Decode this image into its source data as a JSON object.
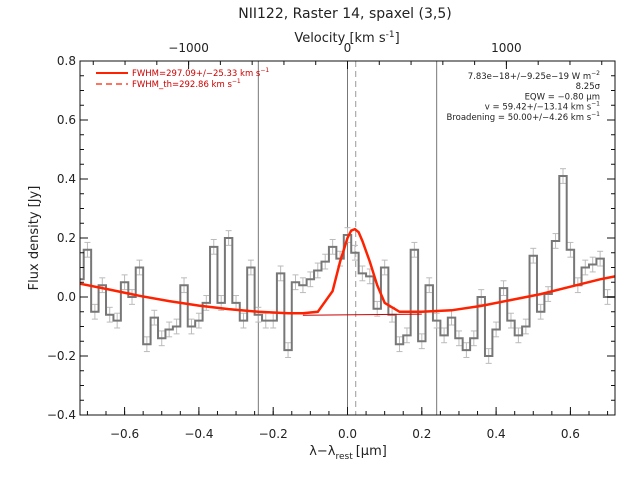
{
  "chart_data": {
    "type": "line",
    "title": "NII122, Raster 14, spaxel (3,5)",
    "xlabel": "λ−λ",
    "xlabel_sub": "rest",
    "xlabel_unit": "[μm]",
    "ylabel": "Flux density [Jy]",
    "top_axis": {
      "label": "Velocity [km s",
      "label_sup": "-1",
      "label_end": "]",
      "ticks": [
        -1000,
        0,
        1000
      ],
      "tick_labels": [
        "−1000",
        "0",
        "1000"
      ]
    },
    "xlim": [
      -0.72,
      0.72
    ],
    "ylim": [
      -0.4,
      0.8
    ],
    "xticks": [
      -0.6,
      -0.4,
      -0.2,
      0.0,
      0.2,
      0.4,
      0.6
    ],
    "xtick_labels": [
      "−0.6",
      "−0.4",
      "−0.2",
      "0.0",
      "0.2",
      "0.4",
      "0.6"
    ],
    "yticks": [
      -0.4,
      -0.2,
      0.0,
      0.2,
      0.4,
      0.6,
      0.8
    ],
    "ytick_labels": [
      "−0.4",
      "−0.2",
      "0.0",
      "0.2",
      "0.4",
      "0.6",
      "0.8"
    ],
    "vlines_solid": [
      -0.24,
      0.0,
      0.24
    ],
    "vline_dashed": 0.022,
    "legend": {
      "placement": "top-left",
      "entries": [
        {
          "label": "FWHM=297.09+/−25.33 km s",
          "sup": "−1",
          "style": "solid"
        },
        {
          "label": "FWHM_th=292.86 km s",
          "sup": "−1",
          "style": "dashed"
        }
      ]
    },
    "annotations": [
      {
        "text": "7.83e−18+/−9.25e−19 W m",
        "sup": "−2"
      },
      {
        "text": "8.25σ",
        "sup": ""
      },
      {
        "text": "EQW = −0.80 μm",
        "sup": ""
      },
      {
        "text": "v = 59.42+/−13.14 km s",
        "sup": "−1"
      },
      {
        "text": "Broadening = 50.00+/−4.26 km s",
        "sup": "−1"
      }
    ],
    "series": [
      {
        "style": "histogram",
        "x": [
          -0.72,
          -0.7,
          -0.68,
          -0.66,
          -0.64,
          -0.62,
          -0.6,
          -0.58,
          -0.56,
          -0.54,
          -0.52,
          -0.5,
          -0.48,
          -0.46,
          -0.44,
          -0.42,
          -0.4,
          -0.38,
          -0.36,
          -0.34,
          -0.32,
          -0.3,
          -0.28,
          -0.26,
          -0.24,
          -0.22,
          -0.2,
          -0.18,
          -0.16,
          -0.14,
          -0.12,
          -0.1,
          -0.08,
          -0.06,
          -0.04,
          -0.02,
          0.0,
          0.02,
          0.04,
          0.06,
          0.08,
          0.1,
          0.12,
          0.14,
          0.16,
          0.18,
          0.2,
          0.22,
          0.24,
          0.26,
          0.28,
          0.3,
          0.32,
          0.34,
          0.36,
          0.38,
          0.4,
          0.42,
          0.44,
          0.46,
          0.48,
          0.5,
          0.52,
          0.54,
          0.56,
          0.58,
          0.6,
          0.62,
          0.64,
          0.66,
          0.68,
          0.7,
          0.72
        ],
        "values": [
          0.06,
          0.16,
          -0.05,
          0.04,
          -0.06,
          -0.08,
          0.05,
          0.0,
          0.1,
          -0.16,
          -0.07,
          -0.14,
          -0.11,
          -0.1,
          0.04,
          -0.1,
          -0.08,
          -0.02,
          0.17,
          -0.02,
          0.2,
          -0.02,
          -0.08,
          0.1,
          -0.06,
          -0.08,
          -0.08,
          0.08,
          -0.18,
          0.05,
          0.04,
          0.06,
          0.09,
          0.12,
          0.17,
          0.13,
          0.21,
          0.15,
          0.08,
          0.07,
          -0.04,
          0.1,
          -0.06,
          -0.16,
          -0.13,
          0.16,
          -0.15,
          0.04,
          -0.08,
          -0.13,
          -0.07,
          -0.14,
          -0.18,
          -0.14,
          0.0,
          -0.2,
          -0.11,
          0.03,
          -0.08,
          -0.13,
          -0.1,
          0.14,
          -0.05,
          0.01,
          0.19,
          0.41,
          0.16,
          0.04,
          0.1,
          0.11,
          0.13,
          0.0,
          0.0
        ],
        "errors": [
          0.025,
          0.025,
          0.025,
          0.025,
          0.025,
          0.025,
          0.025,
          0.025,
          0.025,
          0.025,
          0.025,
          0.025,
          0.025,
          0.025,
          0.025,
          0.025,
          0.025,
          0.025,
          0.025,
          0.025,
          0.025,
          0.025,
          0.025,
          0.025,
          0.025,
          0.025,
          0.025,
          0.025,
          0.025,
          0.025,
          0.025,
          0.025,
          0.025,
          0.025,
          0.025,
          0.025,
          0.025,
          0.025,
          0.025,
          0.025,
          0.025,
          0.025,
          0.025,
          0.025,
          0.025,
          0.025,
          0.025,
          0.025,
          0.025,
          0.025,
          0.025,
          0.025,
          0.025,
          0.025,
          0.025,
          0.025,
          0.025,
          0.025,
          0.025,
          0.025,
          0.025,
          0.025,
          0.025,
          0.025,
          0.025,
          0.025,
          0.025,
          0.025,
          0.025,
          0.025,
          0.025,
          0.025,
          0.025
        ]
      },
      {
        "style": "thick-line",
        "x": [
          -0.72,
          -0.64,
          -0.56,
          -0.48,
          -0.4,
          -0.32,
          -0.24,
          -0.16,
          -0.12,
          -0.08,
          -0.04,
          -0.02,
          0.0,
          0.01,
          0.02,
          0.03,
          0.04,
          0.06,
          0.08,
          0.1,
          0.14,
          0.2,
          0.28,
          0.36,
          0.44,
          0.52,
          0.6,
          0.68,
          0.72
        ],
        "values": [
          0.045,
          0.025,
          0.004,
          -0.014,
          -0.029,
          -0.041,
          -0.05,
          -0.055,
          -0.055,
          -0.05,
          0.02,
          0.12,
          0.2,
          0.225,
          0.23,
          0.22,
          0.19,
          0.12,
          0.04,
          -0.02,
          -0.05,
          -0.05,
          -0.045,
          -0.03,
          -0.01,
          0.01,
          0.035,
          0.06,
          0.07
        ]
      },
      {
        "style": "thin-line",
        "x": [
          -0.12,
          0.2
        ],
        "values": [
          -0.062,
          -0.058
        ]
      }
    ],
    "colors": {
      "histogram": "#777777",
      "errorbar": "#bbbbbb",
      "fit": "#ff2200",
      "baseline": "#cc0000",
      "legend_text": "#cc0000",
      "axes": "#111111"
    }
  }
}
